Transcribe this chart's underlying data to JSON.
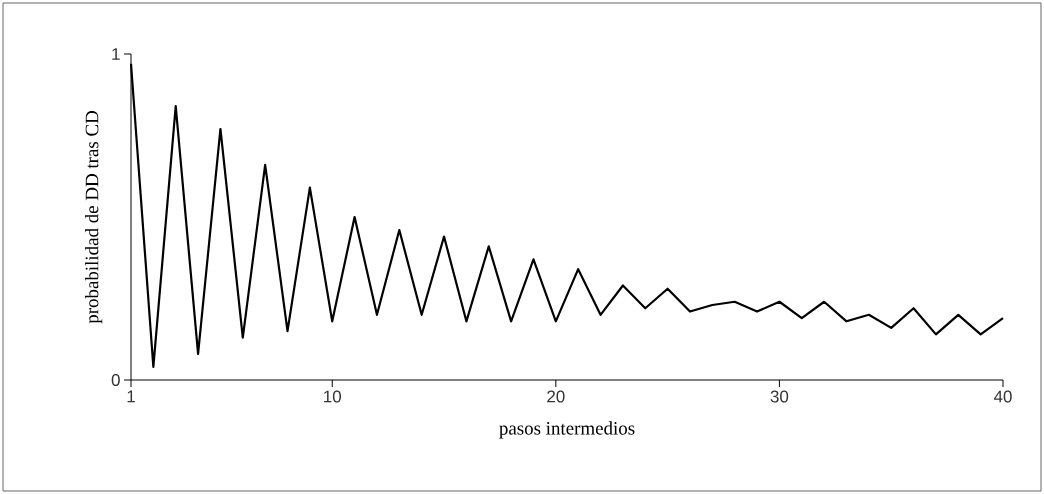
{
  "chart_data": {
    "type": "line",
    "xlabel": "pasos intermedios",
    "ylabel": "probabilidad de DD tras CD",
    "x": [
      1,
      2,
      3,
      4,
      5,
      6,
      7,
      8,
      9,
      10,
      11,
      12,
      13,
      14,
      15,
      16,
      17,
      18,
      19,
      20,
      21,
      22,
      23,
      24,
      25,
      26,
      27,
      28,
      29,
      30,
      31,
      32,
      33,
      34,
      35,
      36,
      37,
      38,
      39,
      40
    ],
    "series": [
      {
        "color": "#000000",
        "values": [
          0.97,
          0.04,
          0.84,
          0.08,
          0.77,
          0.13,
          0.66,
          0.15,
          0.59,
          0.18,
          0.5,
          0.2,
          0.46,
          0.2,
          0.44,
          0.18,
          0.41,
          0.18,
          0.37,
          0.18,
          0.34,
          0.2,
          0.29,
          0.22,
          0.28,
          0.21,
          0.23,
          0.24,
          0.21,
          0.24,
          0.19,
          0.24,
          0.18,
          0.2,
          0.16,
          0.22,
          0.14,
          0.2,
          0.14,
          0.19
        ]
      }
    ],
    "xlim": [
      1,
      40
    ],
    "ylim": [
      0,
      1
    ],
    "xticks": [
      1,
      10,
      20,
      30,
      40
    ],
    "yticks": [
      0,
      1
    ],
    "grid": false,
    "marker": "none",
    "line_style": "solid"
  }
}
